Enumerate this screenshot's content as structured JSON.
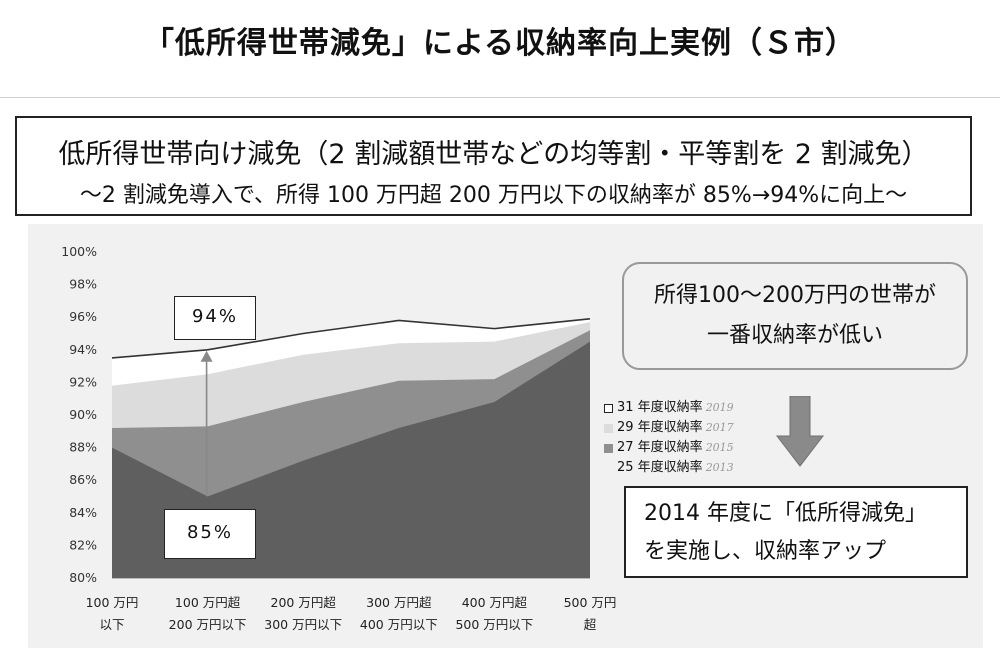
{
  "page": {
    "title": "「低所得世帯減免」による収納率向上実例（Ｓ市）",
    "headline": "低所得世帯向け減免（2 割減額世帯などの均等割・平等割を 2 割減免）",
    "subheadline": "～2 割減免導入で、所得 100 万円超 200 万円以下の収納率が 85%→94%に向上～",
    "note_line1": "所得100～200万円の世帯が",
    "note_line2": "一番収納率が低い",
    "result_line1": "2014 年度に「低所得減免」",
    "result_line2": "を実施し、収納率アップ",
    "callout_high": "94%",
    "callout_low": "85%",
    "arrow_icon": "down-arrow-icon"
  },
  "chart_data": {
    "type": "area",
    "categories": [
      [
        "100 万円",
        "以下"
      ],
      [
        "100 万円超",
        "200 万円以下"
      ],
      [
        "200 万円超",
        "300 万円以下"
      ],
      [
        "300 万円超",
        "400 万円以下"
      ],
      [
        "400 万円超",
        "500 万円以下"
      ],
      [
        "500 万円",
        "超"
      ]
    ],
    "ylim": [
      80,
      100
    ],
    "yticks": [
      "100%",
      "98%",
      "96%",
      "94%",
      "92%",
      "90%",
      "88%",
      "86%",
      "84%",
      "82%",
      "80%"
    ],
    "series": [
      {
        "name": "31 年度収納率",
        "note": "2019",
        "color": "#ffffff",
        "values": [
          93.5,
          94.0,
          95.0,
          95.8,
          95.3,
          95.9
        ]
      },
      {
        "name": "29 年度収納率",
        "note": "2017",
        "color": "#dcdcdc",
        "values": [
          91.8,
          92.5,
          93.7,
          94.4,
          94.5,
          95.7
        ]
      },
      {
        "name": "27 年度収納率",
        "note": "2015",
        "color": "#8f8f8f",
        "values": [
          89.2,
          89.3,
          90.8,
          92.1,
          92.2,
          95.2
        ]
      },
      {
        "name": "25 年度収納率",
        "note": "2013",
        "color": "#5f5f5f",
        "values": [
          88.0,
          85.0,
          87.2,
          89.2,
          90.8,
          94.5
        ]
      }
    ],
    "legend_position": "right",
    "grid": false
  }
}
